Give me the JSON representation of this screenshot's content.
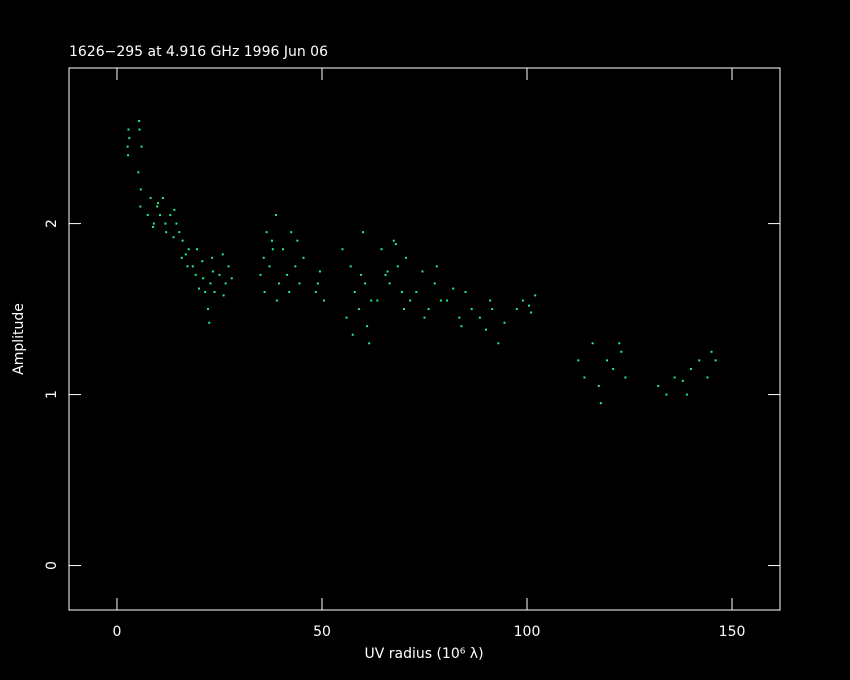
{
  "chart_data": {
    "type": "scatter",
    "title": "1626−295 at 4.916 GHz 1996 Jun 06",
    "xlabel": "UV radius  (10⁶ λ)",
    "ylabel": "Amplitude",
    "color": "#22ee88",
    "xlim": [
      -11.7,
      161.7
    ],
    "xticks": [
      0,
      50,
      100,
      150
    ],
    "ylim": [
      -0.26,
      2.91
    ],
    "yticks": [
      0,
      1,
      2
    ],
    "x": [
      2.6,
      2.8,
      3.0,
      2.7,
      5.2,
      5.5,
      5.8,
      6.0,
      5.4,
      5.7,
      7.5,
      8.2,
      9.0,
      9.8,
      10.5,
      11.2,
      11.8,
      8.8,
      10.0,
      12.0,
      13.0,
      13.8,
      14.5,
      15.2,
      16.0,
      16.8,
      17.5,
      14.0,
      15.8,
      17.2,
      18.5,
      19.2,
      20.0,
      20.8,
      21.5,
      19.5,
      21.0,
      22.2,
      22.8,
      23.4,
      23.8,
      22.5,
      23.2,
      25.0,
      25.8,
      26.5,
      27.2,
      28.0,
      26.0,
      35.0,
      35.8,
      36.5,
      37.2,
      38.0,
      38.8,
      39.5,
      36.0,
      37.8,
      39.0,
      40.5,
      41.5,
      42.5,
      43.5,
      44.5,
      45.5,
      42.0,
      44.0,
      48.5,
      49.5,
      50.5,
      49.0,
      55.0,
      56.0,
      57.0,
      58.0,
      59.0,
      60.0,
      61.0,
      62.0,
      57.5,
      59.5,
      60.5,
      61.5,
      63.5,
      64.5,
      65.5,
      66.5,
      67.5,
      68.5,
      69.5,
      70.5,
      71.5,
      66.0,
      68.0,
      70.0,
      73.0,
      74.5,
      76.0,
      77.5,
      79.0,
      75.0,
      78.0,
      80.5,
      82.0,
      83.5,
      85.0,
      86.5,
      84.0,
      88.5,
      90.0,
      91.5,
      93.0,
      94.5,
      91.0,
      97.5,
      99.0,
      100.5,
      102.0,
      101.0,
      112.5,
      114.0,
      116.0,
      117.5,
      119.5,
      121.0,
      122.5,
      124.0,
      118.0,
      123.0,
      132.0,
      134.0,
      136.0,
      138.0,
      140.0,
      142.0,
      144.0,
      146.0,
      139.0,
      145.0
    ],
    "y": [
      2.45,
      2.55,
      2.5,
      2.4,
      2.3,
      2.55,
      2.2,
      2.45,
      2.6,
      2.1,
      2.05,
      2.15,
      2.0,
      2.1,
      2.05,
      2.15,
      2.0,
      1.98,
      2.12,
      1.95,
      2.05,
      1.92,
      2.0,
      1.95,
      1.9,
      1.82,
      1.85,
      2.08,
      1.8,
      1.75,
      1.75,
      1.7,
      1.62,
      1.78,
      1.6,
      1.85,
      1.68,
      1.5,
      1.65,
      1.72,
      1.6,
      1.42,
      1.8,
      1.7,
      1.82,
      1.65,
      1.75,
      1.68,
      1.58,
      1.7,
      1.8,
      1.95,
      1.75,
      1.85,
      2.05,
      1.65,
      1.6,
      1.9,
      1.55,
      1.85,
      1.7,
      1.95,
      1.75,
      1.65,
      1.8,
      1.6,
      1.9,
      1.6,
      1.72,
      1.55,
      1.65,
      1.85,
      1.45,
      1.75,
      1.6,
      1.5,
      1.95,
      1.4,
      1.55,
      1.35,
      1.7,
      1.65,
      1.3,
      1.55,
      1.85,
      1.7,
      1.65,
      1.9,
      1.75,
      1.6,
      1.8,
      1.55,
      1.72,
      1.88,
      1.5,
      1.6,
      1.72,
      1.5,
      1.65,
      1.55,
      1.45,
      1.75,
      1.55,
      1.62,
      1.45,
      1.6,
      1.5,
      1.4,
      1.45,
      1.38,
      1.5,
      1.3,
      1.42,
      1.55,
      1.5,
      1.55,
      1.52,
      1.58,
      1.48,
      1.2,
      1.1,
      1.3,
      1.05,
      1.2,
      1.15,
      1.3,
      1.1,
      0.95,
      1.25,
      1.05,
      1.0,
      1.1,
      1.08,
      1.15,
      1.2,
      1.1,
      1.2,
      1.0,
      1.25
    ]
  }
}
